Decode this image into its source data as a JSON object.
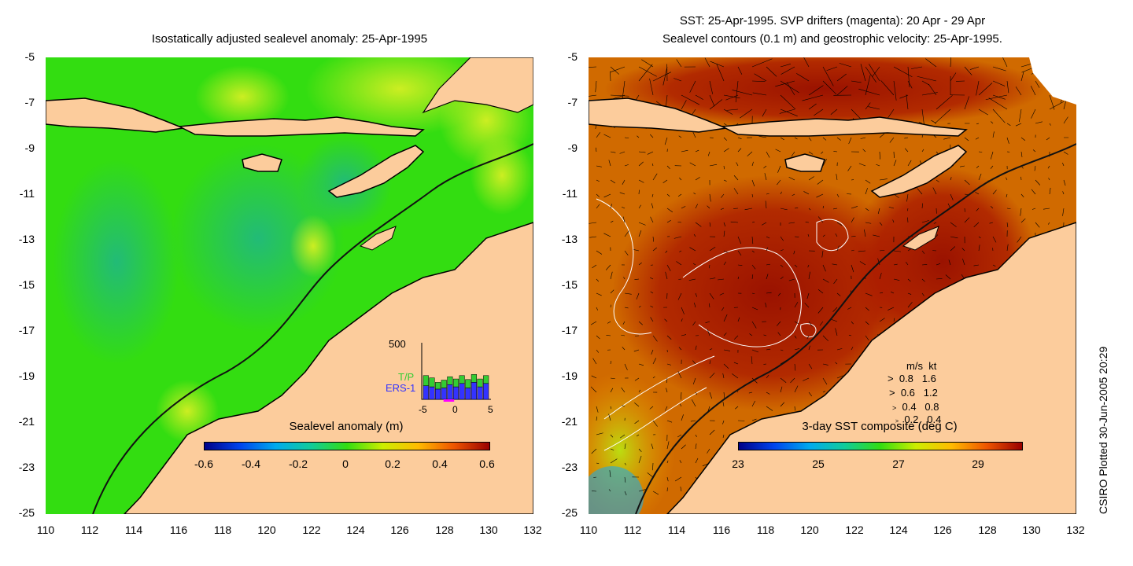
{
  "left_panel": {
    "title": "Isostatically adjusted sealevel anomaly: 25-Apr-1995",
    "y_ticks": [
      "-5",
      "-7",
      "-9",
      "-11",
      "-13",
      "-15",
      "-17",
      "-19",
      "-21",
      "-23",
      "-25"
    ],
    "x_ticks": [
      "110",
      "112",
      "114",
      "116",
      "118",
      "120",
      "122",
      "124",
      "126",
      "128",
      "130",
      "132"
    ],
    "colorbar": {
      "label": "Sealevel anomaly (m)",
      "ticks": [
        "-0.6",
        "-0.4",
        "-0.2",
        "0",
        "0.2",
        "0.4",
        "0.6"
      ]
    },
    "inset": {
      "y_max_label": "500",
      "series": [
        {
          "name": "T/P",
          "color": "#33cc33"
        },
        {
          "name": "ERS-1",
          "color": "#3333ff"
        }
      ],
      "x_ticks": [
        "-5",
        "0",
        "5"
      ],
      "bars_total": [
        210,
        190,
        150,
        170,
        200,
        180,
        210,
        175,
        220,
        180,
        210
      ],
      "bars_ers": [
        120,
        110,
        90,
        100,
        130,
        110,
        140,
        100,
        150,
        110,
        140
      ]
    }
  },
  "right_panel": {
    "title_line1": "SST: 25-Apr-1995. SVP drifters (magenta): 20 Apr - 29 Apr",
    "title_line2": "Sealevel contours (0.1 m) and geostrophic velocity: 25-Apr-1995.",
    "y_ticks": [
      "-5",
      "-7",
      "-9",
      "-11",
      "-13",
      "-15",
      "-17",
      "-19",
      "-21",
      "-23",
      "-25"
    ],
    "x_ticks": [
      "110",
      "112",
      "114",
      "116",
      "118",
      "120",
      "122",
      "124",
      "126",
      "128",
      "130",
      "132"
    ],
    "colorbar": {
      "label": "3-day SST composite (deg C)",
      "ticks": [
        "23",
        "25",
        "27",
        "29"
      ]
    },
    "velocity_legend": {
      "header_ms": "m/s",
      "header_kt": "kt",
      "rows": [
        {
          "ms": "0.8",
          "kt": "1.6"
        },
        {
          "ms": "0.6",
          "kt": "1.2"
        },
        {
          "ms": "0.4",
          "kt": "0.8"
        },
        {
          "ms": "0.2",
          "kt": "0.4"
        }
      ]
    }
  },
  "credit": "CSIRO Plotted 30-Jun-2005 20:29",
  "colors": {
    "land": "#fccc9c",
    "ocean_left": "#33dd11",
    "ocean_right": "#cc5500",
    "ocean_right_dark": "#9a1200",
    "coast": "#000000"
  }
}
